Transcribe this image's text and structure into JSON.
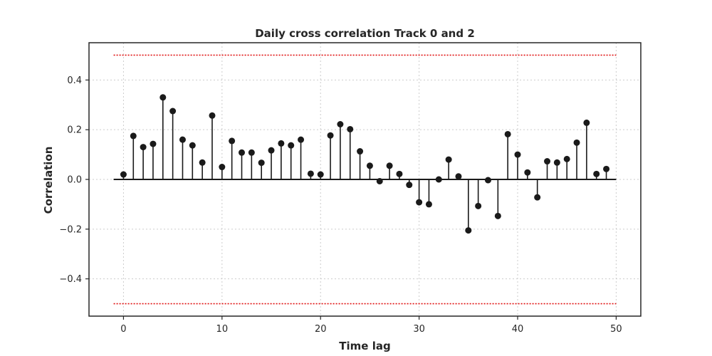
{
  "chart_data": {
    "type": "stem",
    "title": "Daily cross correlation Track 0 and 2",
    "xlabel": "Time lag",
    "ylabel": "Correlation",
    "xlim": [
      -3.5,
      52.5
    ],
    "ylim": [
      -0.55,
      0.55
    ],
    "x_ticks": [
      0,
      10,
      20,
      30,
      40,
      50
    ],
    "x_tick_labels": [
      "0",
      "10",
      "20",
      "30",
      "40",
      "50"
    ],
    "y_ticks": [
      -0.4,
      -0.2,
      0.0,
      0.2,
      0.4
    ],
    "y_tick_labels": [
      "−0.4",
      "−0.2",
      "0.0",
      "0.2",
      "0.4"
    ],
    "grid": true,
    "baseline": 0,
    "baseline_x_range": [
      -1,
      50
    ],
    "confidence_bounds": [
      0.5,
      -0.5
    ],
    "colors": {
      "stem": "#1a1a1a",
      "bound": "#e01010",
      "grid": "#cccccc"
    },
    "x": [
      0,
      1,
      2,
      3,
      4,
      5,
      6,
      7,
      8,
      9,
      10,
      11,
      12,
      13,
      14,
      15,
      16,
      17,
      18,
      19,
      20,
      21,
      22,
      23,
      24,
      25,
      26,
      27,
      28,
      29,
      30,
      31,
      32,
      33,
      34,
      35,
      36,
      37,
      38,
      39,
      40,
      41,
      42,
      43,
      44,
      45,
      46,
      47,
      48,
      49
    ],
    "values": [
      0.02,
      0.175,
      0.13,
      0.143,
      0.33,
      0.275,
      0.16,
      0.137,
      0.068,
      0.257,
      0.05,
      0.155,
      0.108,
      0.108,
      0.067,
      0.117,
      0.145,
      0.137,
      0.16,
      0.023,
      0.02,
      0.177,
      0.222,
      0.202,
      0.113,
      0.055,
      -0.007,
      0.055,
      0.022,
      -0.022,
      -0.092,
      -0.1,
      0.0,
      0.08,
      0.012,
      -0.205,
      -0.107,
      -0.003,
      -0.147,
      0.182,
      0.1,
      0.028,
      -0.072,
      0.073,
      0.068,
      0.082,
      0.148,
      0.228,
      0.022,
      0.042
    ]
  }
}
